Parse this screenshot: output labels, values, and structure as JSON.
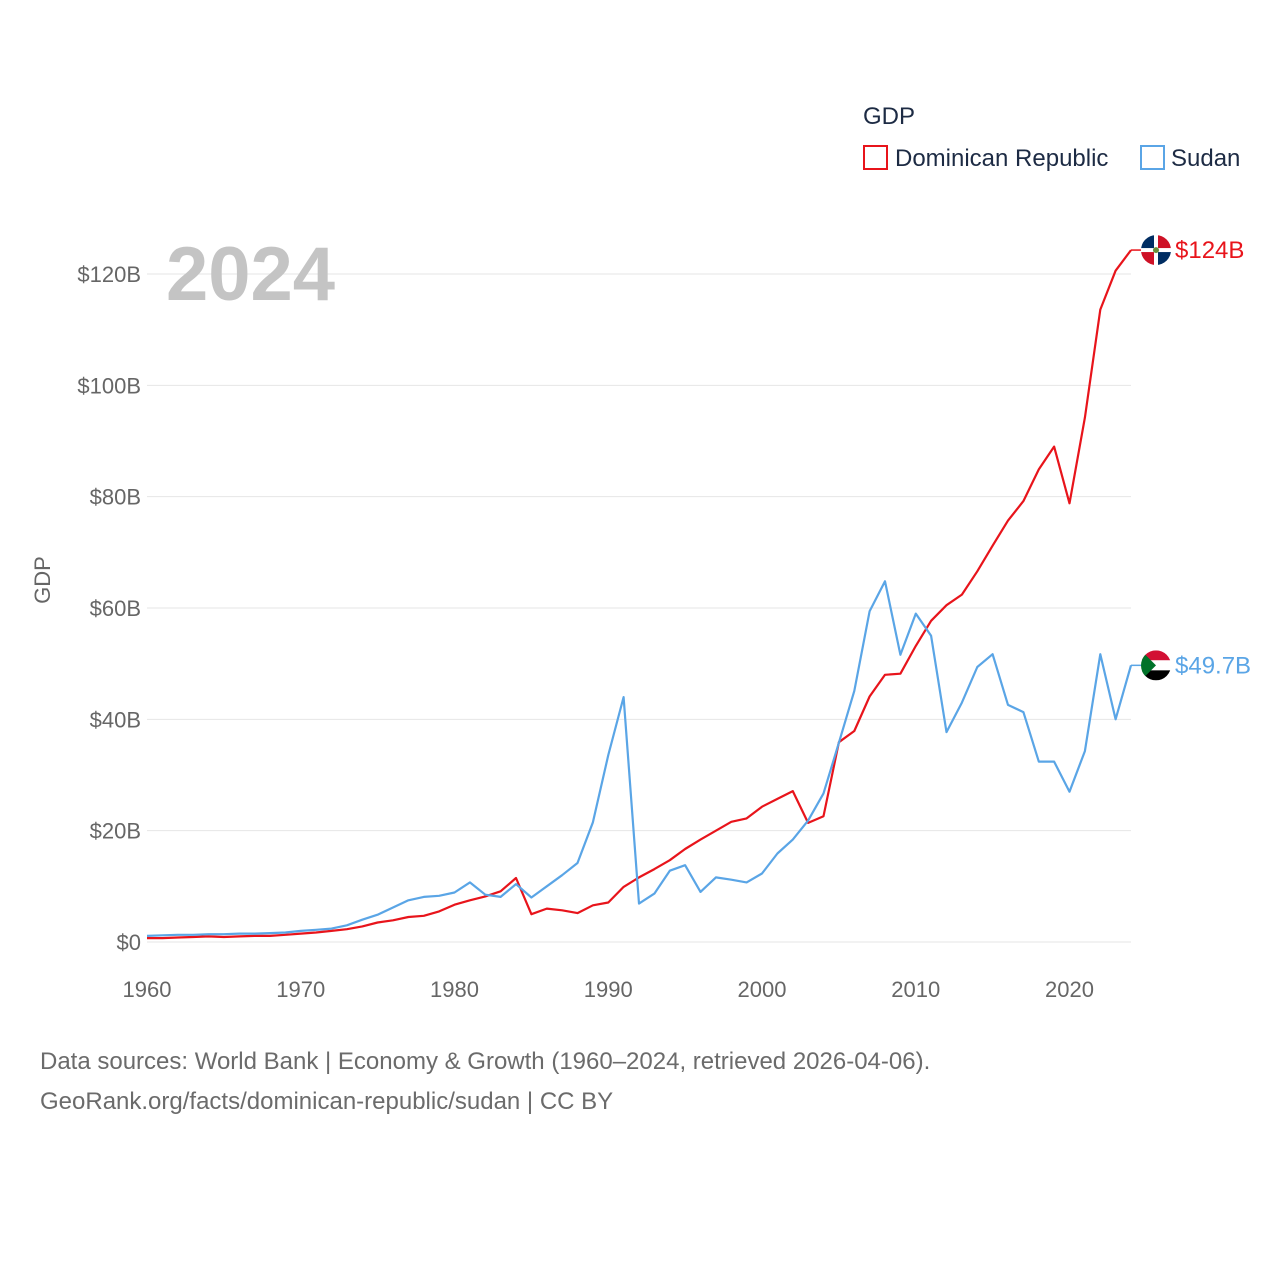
{
  "chart_data": {
    "type": "line",
    "title": "",
    "year_watermark": "2024",
    "ylabel": "GDP",
    "xlabel": "",
    "xlim": [
      1960,
      2024
    ],
    "ylim": [
      0,
      120
    ],
    "x_ticks": [
      1960,
      1970,
      1980,
      1990,
      2000,
      2010,
      2020
    ],
    "x_tick_labels": [
      "1960",
      "1970",
      "1980",
      "1990",
      "2000",
      "2010",
      "2020"
    ],
    "y_ticks": [
      0,
      20,
      40,
      60,
      80,
      100,
      120
    ],
    "y_tick_labels": [
      "$0",
      "$20B",
      "$40B",
      "$60B",
      "$80B",
      "$100B",
      "$120B"
    ],
    "legend": {
      "title": "GDP",
      "position": "top-right"
    },
    "x": [
      1960,
      1961,
      1962,
      1963,
      1964,
      1965,
      1966,
      1967,
      1968,
      1969,
      1970,
      1971,
      1972,
      1973,
      1974,
      1975,
      1976,
      1977,
      1978,
      1979,
      1980,
      1981,
      1982,
      1983,
      1984,
      1985,
      1986,
      1987,
      1988,
      1989,
      1990,
      1991,
      1992,
      1993,
      1994,
      1995,
      1996,
      1997,
      1998,
      1999,
      2000,
      2001,
      2002,
      2003,
      2004,
      2005,
      2006,
      2007,
      2008,
      2009,
      2010,
      2011,
      2012,
      2013,
      2014,
      2015,
      2016,
      2017,
      2018,
      2019,
      2020,
      2021,
      2022,
      2023,
      2024
    ],
    "series": [
      {
        "name": "Dominican Republic",
        "color": "#e8141b",
        "end_label": "$124B",
        "flag": "dominican-republic-flag-icon",
        "values": [
          0.7,
          0.7,
          0.8,
          0.9,
          1.0,
          0.9,
          1.0,
          1.1,
          1.1,
          1.3,
          1.5,
          1.7,
          2.0,
          2.3,
          2.8,
          3.5,
          3.9,
          4.5,
          4.7,
          5.5,
          6.7,
          7.5,
          8.2,
          9.1,
          11.5,
          5.0,
          6.0,
          5.7,
          5.2,
          6.6,
          7.1,
          9.9,
          11.6,
          13.1,
          14.7,
          16.7,
          18.4,
          20.0,
          21.6,
          22.2,
          24.3,
          25.7,
          27.1,
          21.4,
          22.6,
          35.9,
          37.9,
          44.1,
          48.0,
          48.2,
          53.2,
          57.7,
          60.5,
          62.4,
          66.6,
          71.2,
          75.7,
          79.2,
          84.9,
          89.0,
          78.8,
          94.2,
          113.6,
          120.6,
          124.3
        ]
      },
      {
        "name": "Sudan",
        "color": "#5aa5e6",
        "end_label": "$49.7B",
        "flag": "sudan-flag-icon",
        "values": [
          1.1,
          1.2,
          1.3,
          1.3,
          1.4,
          1.4,
          1.5,
          1.5,
          1.6,
          1.7,
          2.0,
          2.2,
          2.4,
          3.0,
          4.0,
          4.9,
          6.2,
          7.5,
          8.1,
          8.3,
          8.9,
          10.7,
          8.5,
          8.1,
          10.4,
          8.0,
          10.0,
          12.0,
          14.2,
          21.5,
          33.6,
          44.0,
          6.9,
          8.7,
          12.8,
          13.8,
          9.0,
          11.6,
          11.2,
          10.7,
          12.3,
          15.9,
          18.4,
          21.8,
          26.7,
          35.8,
          45.1,
          59.4,
          64.8,
          51.6,
          59.0,
          55.0,
          37.7,
          43.0,
          49.4,
          51.7,
          42.6,
          41.3,
          32.4,
          32.4,
          27.0,
          34.3,
          51.7,
          40.0,
          49.7
        ]
      }
    ]
  },
  "footer": {
    "line1": "Data sources: World Bank | Economy & Growth (1960–2024, retrieved 2026-04-06).",
    "line2": "GeoRank.org/facts/dominican-republic/sudan | CC BY"
  }
}
